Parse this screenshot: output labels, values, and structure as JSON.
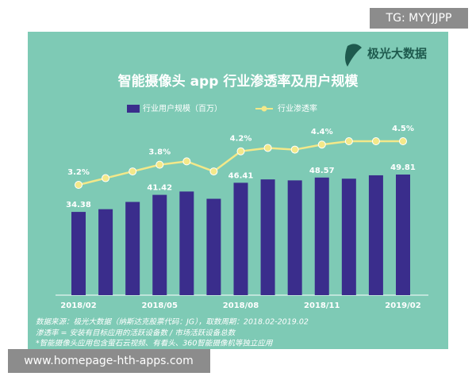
{
  "watermark": "TG: MYYJJPP",
  "footer_url": "www.homepage-hth-apps.com",
  "logo": "极光大数据",
  "notes": [
    "数据来源：极光大数据（纳斯达克股票代码：JG），取数周期：2018.02-2019.02",
    "渗透率 = 安装有目标应用的活跃设备数 / 市场活跃设备总数",
    "*智能摄像头应用包含萤石云视频、有看头、360智能摄像机等独立应用"
  ],
  "chart_data": {
    "type": "bar-line",
    "title": "智能摄像头 app 行业渗透率及用户规模",
    "categories": [
      "2018/02",
      null,
      null,
      "2018/05",
      null,
      null,
      "2018/08",
      null,
      null,
      "2018/11",
      null,
      null,
      "2019/02"
    ],
    "series": [
      {
        "name": "行业用户规模（百万）",
        "color": "#3a2d8c",
        "values": [
          34.38,
          35.5,
          38.5,
          41.42,
          42.8,
          39.8,
          46.41,
          47.8,
          47.4,
          48.57,
          48.1,
          49.5,
          49.81
        ],
        "value_labels": [
          "34.38",
          null,
          null,
          "41.42",
          null,
          null,
          "46.41",
          null,
          null,
          "48.57",
          null,
          null,
          "49.81"
        ]
      },
      {
        "name": "行业渗透率",
        "color": "#f3e889",
        "values": [
          3.2,
          3.4,
          3.6,
          3.8,
          3.9,
          3.6,
          4.2,
          4.3,
          4.25,
          4.4,
          4.5,
          4.5,
          4.5
        ],
        "value_labels": [
          "3.2%",
          null,
          null,
          "3.8%",
          null,
          null,
          "4.2%",
          null,
          null,
          "4.4%",
          null,
          null,
          "4.5%"
        ]
      }
    ]
  }
}
